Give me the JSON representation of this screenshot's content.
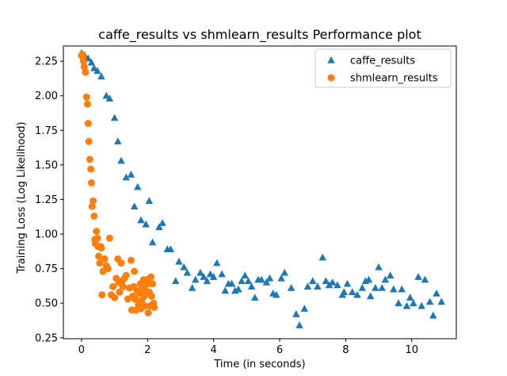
{
  "chart_data": {
    "type": "scatter",
    "title": "caffe_results vs shmlearn_results Performance plot",
    "xlabel": "Time (in seconds)",
    "ylabel": "Training Loss (Log Likelihood)",
    "xlim": [
      -0.55,
      11.35
    ],
    "ylim": [
      0.243,
      2.36
    ],
    "x_ticks": [
      0,
      2,
      4,
      6,
      8,
      10
    ],
    "y_ticks": [
      0.25,
      0.5,
      0.75,
      1.0,
      1.25,
      1.5,
      1.75,
      2.0,
      2.25
    ],
    "x_tick_labels": [
      "0",
      "2",
      "4",
      "6",
      "8",
      "10"
    ],
    "y_tick_labels": [
      "0.25",
      "0.50",
      "0.75",
      "1.00",
      "1.25",
      "1.50",
      "1.75",
      "2.00",
      "2.25"
    ],
    "grid": false,
    "legend_position": "upper right",
    "series": [
      {
        "name": "caffe_results",
        "marker": "triangle",
        "color": "#1f77b4",
        "points": [
          [
            0.0,
            2.31
          ],
          [
            0.1,
            2.29
          ],
          [
            0.2,
            2.27
          ],
          [
            0.3,
            2.24
          ],
          [
            0.38,
            2.2
          ],
          [
            0.48,
            2.18
          ],
          [
            0.6,
            2.14
          ],
          [
            0.75,
            2.0
          ],
          [
            0.85,
            1.98
          ],
          [
            1.0,
            1.84
          ],
          [
            1.1,
            1.67
          ],
          [
            1.2,
            1.53
          ],
          [
            1.35,
            1.41
          ],
          [
            1.5,
            1.43
          ],
          [
            1.6,
            1.2
          ],
          [
            1.7,
            1.34
          ],
          [
            1.8,
            1.1
          ],
          [
            1.95,
            1.07
          ],
          [
            2.05,
            1.24
          ],
          [
            2.15,
            0.94
          ],
          [
            2.35,
            1.05
          ],
          [
            2.45,
            1.08
          ],
          [
            2.6,
            0.89
          ],
          [
            2.7,
            0.89
          ],
          [
            2.85,
            0.66
          ],
          [
            2.95,
            0.8
          ],
          [
            3.1,
            0.76
          ],
          [
            3.2,
            0.72
          ],
          [
            3.35,
            0.61
          ],
          [
            3.45,
            0.67
          ],
          [
            3.6,
            0.72
          ],
          [
            3.7,
            0.69
          ],
          [
            3.8,
            0.66
          ],
          [
            3.9,
            0.71
          ],
          [
            4.0,
            0.69
          ],
          [
            4.1,
            0.79
          ],
          [
            4.25,
            0.71
          ],
          [
            4.35,
            0.59
          ],
          [
            4.45,
            0.64
          ],
          [
            4.55,
            0.64
          ],
          [
            4.65,
            0.59
          ],
          [
            4.75,
            0.6
          ],
          [
            4.85,
            0.66
          ],
          [
            4.95,
            0.7
          ],
          [
            5.05,
            0.66
          ],
          [
            5.15,
            0.62
          ],
          [
            5.25,
            0.54
          ],
          [
            5.35,
            0.67
          ],
          [
            5.45,
            0.67
          ],
          [
            5.6,
            0.65
          ],
          [
            5.7,
            0.68
          ],
          [
            5.8,
            0.57
          ],
          [
            5.9,
            0.56
          ],
          [
            6.05,
            0.68
          ],
          [
            6.15,
            0.72
          ],
          [
            6.35,
            0.61
          ],
          [
            6.5,
            0.42
          ],
          [
            6.6,
            0.34
          ],
          [
            6.75,
            0.46
          ],
          [
            6.85,
            0.62
          ],
          [
            7.0,
            0.66
          ],
          [
            7.15,
            0.62
          ],
          [
            7.3,
            0.83
          ],
          [
            7.4,
            0.66
          ],
          [
            7.5,
            0.63
          ],
          [
            7.6,
            0.65
          ],
          [
            7.75,
            0.63
          ],
          [
            7.9,
            0.56
          ],
          [
            7.95,
            0.58
          ],
          [
            8.05,
            0.64
          ],
          [
            8.2,
            0.58
          ],
          [
            8.35,
            0.56
          ],
          [
            8.5,
            0.61
          ],
          [
            8.6,
            0.66
          ],
          [
            8.7,
            0.67
          ],
          [
            8.75,
            0.55
          ],
          [
            8.9,
            0.61
          ],
          [
            9.0,
            0.76
          ],
          [
            9.1,
            0.61
          ],
          [
            9.2,
            0.67
          ],
          [
            9.35,
            0.7
          ],
          [
            9.45,
            0.6
          ],
          [
            9.6,
            0.5
          ],
          [
            9.7,
            0.6
          ],
          [
            9.85,
            0.48
          ],
          [
            9.95,
            0.54
          ],
          [
            10.05,
            0.5
          ],
          [
            10.2,
            0.69
          ],
          [
            10.3,
            0.48
          ],
          [
            10.4,
            0.67
          ],
          [
            10.55,
            0.51
          ],
          [
            10.65,
            0.41
          ],
          [
            10.75,
            0.57
          ],
          [
            10.9,
            0.51
          ]
        ]
      },
      {
        "name": "shmlearn_results",
        "marker": "circle",
        "color": "#ff7f0e",
        "points": [
          [
            0.0,
            2.29
          ],
          [
            0.02,
            2.3
          ],
          [
            0.04,
            2.28
          ],
          [
            0.06,
            2.25
          ],
          [
            0.08,
            2.21
          ],
          [
            0.12,
            2.17
          ],
          [
            0.15,
            1.99
          ],
          [
            0.18,
            1.94
          ],
          [
            0.2,
            1.8
          ],
          [
            0.22,
            1.67
          ],
          [
            0.25,
            1.54
          ],
          [
            0.28,
            1.47
          ],
          [
            0.3,
            1.37
          ],
          [
            0.32,
            1.2
          ],
          [
            0.35,
            1.24
          ],
          [
            0.38,
            1.13
          ],
          [
            0.4,
            0.96
          ],
          [
            0.42,
            0.93
          ],
          [
            0.45,
            1.02
          ],
          [
            0.48,
            0.97
          ],
          [
            0.5,
            0.91
          ],
          [
            0.52,
            0.84
          ],
          [
            0.55,
            0.79
          ],
          [
            0.58,
            0.91
          ],
          [
            0.6,
            0.9
          ],
          [
            0.62,
            0.56
          ],
          [
            0.65,
            0.73
          ],
          [
            0.7,
            0.82
          ],
          [
            0.75,
            0.77
          ],
          [
            0.8,
            0.75
          ],
          [
            0.85,
            0.97
          ],
          [
            0.9,
            0.56
          ],
          [
            0.95,
            0.62
          ],
          [
            1.0,
            0.54
          ],
          [
            1.05,
            0.68
          ],
          [
            1.1,
            0.82
          ],
          [
            1.12,
            0.65
          ],
          [
            1.15,
            0.58
          ],
          [
            1.2,
            0.79
          ],
          [
            1.22,
            0.66
          ],
          [
            1.25,
            0.62
          ],
          [
            1.3,
            0.68
          ],
          [
            1.35,
            0.7
          ],
          [
            1.4,
            0.53
          ],
          [
            1.45,
            0.61
          ],
          [
            1.5,
            0.81
          ],
          [
            1.52,
            0.45
          ],
          [
            1.55,
            0.55
          ],
          [
            1.58,
            0.62
          ],
          [
            1.6,
            0.73
          ],
          [
            1.62,
            0.53
          ],
          [
            1.65,
            0.45
          ],
          [
            1.68,
            0.59
          ],
          [
            1.72,
            0.49
          ],
          [
            1.75,
            0.57
          ],
          [
            1.78,
            0.64
          ],
          [
            1.8,
            0.46
          ],
          [
            1.82,
            0.52
          ],
          [
            1.85,
            0.61
          ],
          [
            1.88,
            0.67
          ],
          [
            1.9,
            0.55
          ],
          [
            1.92,
            0.48
          ],
          [
            1.95,
            0.59
          ],
          [
            1.98,
            0.67
          ],
          [
            2.0,
            0.64
          ],
          [
            2.02,
            0.43
          ],
          [
            2.05,
            0.58
          ],
          [
            2.08,
            0.48
          ],
          [
            2.1,
            0.69
          ],
          [
            2.12,
            0.55
          ],
          [
            2.15,
            0.64
          ],
          [
            2.18,
            0.5
          ],
          [
            2.2,
            0.47
          ]
        ]
      }
    ]
  }
}
